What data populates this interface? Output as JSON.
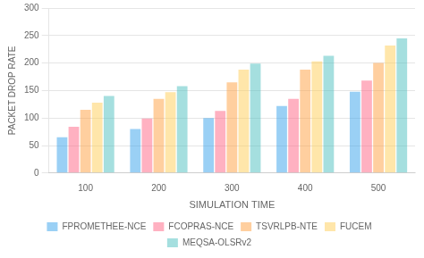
{
  "chart_data": {
    "type": "bar",
    "categories": [
      100,
      200,
      300,
      400,
      500
    ],
    "series": [
      {
        "name": "FPROMETHEE-NCE",
        "values": [
          65,
          80,
          100,
          122,
          148
        ]
      },
      {
        "name": "FCOPRAS-NCE",
        "values": [
          84,
          99,
          113,
          135,
          168
        ]
      },
      {
        "name": "TSVRLPB-NTE",
        "values": [
          115,
          135,
          165,
          188,
          200
        ]
      },
      {
        "name": "FUCEM",
        "values": [
          128,
          147,
          188,
          203,
          232
        ]
      },
      {
        "name": "MEQSA-OLSRv2",
        "values": [
          140,
          158,
          199,
          213,
          245
        ]
      }
    ],
    "xlabel": "SIMULATION TIME",
    "ylabel": "PACKET DROP RATE",
    "ylim": [
      0,
      300
    ],
    "yticks": [
      0,
      50,
      100,
      150,
      200,
      250,
      300
    ],
    "grid": true,
    "legend": "bottom"
  }
}
